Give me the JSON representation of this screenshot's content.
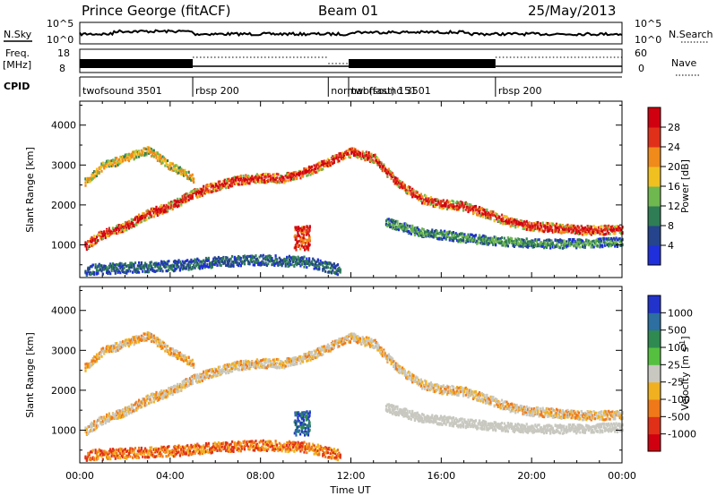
{
  "header": {
    "station": "Prince George (fitACF)",
    "beam": "Beam 01",
    "date": "25/May/2013"
  },
  "noise_panel": {
    "left_label": "N.Sky",
    "right_label": "N.Search",
    "left_ticks": [
      "10^5",
      "10^0"
    ],
    "right_ticks": [
      "10^5",
      "10^0"
    ]
  },
  "freq_panel": {
    "left_label_1": "Freq.",
    "left_label_2": "[MHz]",
    "right_label": "Nave",
    "left_ticks": [
      "18",
      "8"
    ],
    "right_ticks": [
      "60",
      "0"
    ]
  },
  "cpid": {
    "label": "CPID",
    "segments": [
      {
        "name": "twofsound 3501",
        "start_hour": 0,
        "end_hour": 5.0
      },
      {
        "name": "rbsp 200",
        "start_hour": 5.0,
        "end_hour": 11.0
      },
      {
        "name": "normal (fast) 151",
        "start_hour": 11.0,
        "end_hour": 11.9
      },
      {
        "name": "twofsound 3501",
        "start_hour": 11.9,
        "end_hour": 18.4
      },
      {
        "name": "rbsp 200",
        "start_hour": 18.4,
        "end_hour": 24.0
      }
    ]
  },
  "x_axis": {
    "label": "Time UT",
    "ticks": [
      "00:00",
      "04:00",
      "08:00",
      "12:00",
      "16:00",
      "20:00",
      "00:00"
    ]
  },
  "y_axis": {
    "label": "Slant Range [km]",
    "ticks": [
      "1000",
      "2000",
      "3000",
      "4000"
    ]
  },
  "power_colorbar": {
    "label": "Power [dB]",
    "ticks": [
      "4",
      "8",
      "12",
      "16",
      "20",
      "24",
      "28"
    ],
    "colors": [
      "#1f2fdc",
      "#25448d",
      "#2f7d55",
      "#6fb84f",
      "#f0c020",
      "#f08a1a",
      "#e0301a",
      "#d00010"
    ]
  },
  "velocity_colorbar": {
    "label_main": "Velocity [m s",
    "label_sup": "-1",
    "label_end": "]",
    "ticks": [
      "1000",
      "500",
      "100",
      "25",
      "-25",
      "-100",
      "-500",
      "-1000"
    ],
    "colors": [
      "#2233cc",
      "#2c6fa0",
      "#2e8a50",
      "#55c040",
      "#c8c8c0",
      "#f0b020",
      "#f07818",
      "#e03018",
      "#d00010"
    ]
  },
  "chart_data": {
    "type": "heatmap",
    "x": {
      "unit": "hour UT",
      "range": [
        0,
        24
      ]
    },
    "y": {
      "unit": "km",
      "range": [
        180,
        4600
      ]
    },
    "bands": [
      {
        "name": "lower scatter",
        "points": [
          [
            0.2,
            400
          ],
          [
            2,
            450
          ],
          [
            4,
            500
          ],
          [
            6,
            600
          ],
          [
            8,
            650
          ],
          [
            10,
            600
          ],
          [
            11.5,
            400
          ]
        ]
      },
      {
        "name": "main arc",
        "points": [
          [
            0.2,
            1000
          ],
          [
            1,
            1300
          ],
          [
            2,
            1500
          ],
          [
            3,
            1800
          ],
          [
            4,
            2000
          ],
          [
            5,
            2300
          ],
          [
            6,
            2500
          ],
          [
            7,
            2650
          ],
          [
            8,
            2700
          ],
          [
            9,
            2700
          ],
          [
            10,
            2850
          ],
          [
            11,
            3100
          ],
          [
            12,
            3350
          ],
          [
            13,
            3200
          ],
          [
            14,
            2600
          ],
          [
            15,
            2200
          ],
          [
            16,
            2050
          ],
          [
            17,
            2000
          ],
          [
            18,
            1800
          ],
          [
            19,
            1600
          ],
          [
            20,
            1500
          ],
          [
            22,
            1400
          ],
          [
            24,
            1400
          ]
        ]
      },
      {
        "name": "upper layer",
        "points": [
          [
            0.2,
            2600
          ],
          [
            1,
            3000
          ],
          [
            2,
            3200
          ],
          [
            3,
            3400
          ],
          [
            4,
            3000
          ],
          [
            5,
            2700
          ]
        ]
      },
      {
        "name": "late band",
        "points": [
          [
            13.5,
            1600
          ],
          [
            15,
            1350
          ],
          [
            17,
            1200
          ],
          [
            19,
            1100
          ],
          [
            21,
            1050
          ],
          [
            24,
            1100
          ]
        ]
      }
    ],
    "patches": [
      {
        "name": "patch 10UT",
        "x": 9.8,
        "y": 1200
      }
    ]
  }
}
